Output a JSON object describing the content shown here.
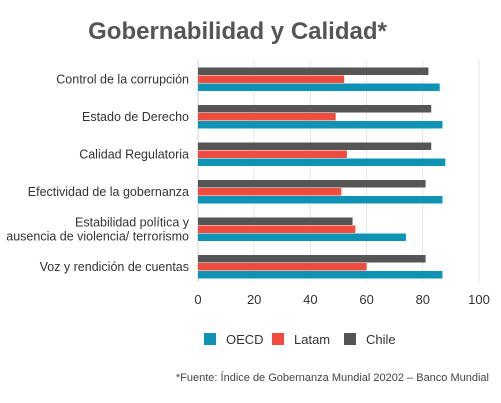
{
  "chart_data": {
    "type": "bar",
    "orientation": "horizontal",
    "title": "Gobernabilidad y Calidad*",
    "categories": [
      [
        "Control de la corrupción"
      ],
      [
        "Estado de Derecho"
      ],
      [
        "Calidad Regulatoria"
      ],
      [
        "Efectividad de la gobernanza"
      ],
      [
        "Estabilidad política y",
        "ausencia de violencia/ terrorismo"
      ],
      [
        "Voz y rendición de cuentas"
      ]
    ],
    "series": [
      {
        "name": "OECD",
        "color": "#0E93B5",
        "values": [
          86,
          87,
          88,
          87,
          74,
          87
        ]
      },
      {
        "name": "Latam",
        "color": "#F04C3E",
        "values": [
          52,
          49,
          53,
          51,
          56,
          60
        ]
      },
      {
        "name": "Chile",
        "color": "#555555",
        "values": [
          82,
          83,
          83,
          81,
          55,
          81
        ]
      }
    ],
    "xlim": [
      0,
      100
    ],
    "xticks": [
      0,
      20,
      40,
      60,
      80,
      100
    ],
    "grid": "vertical",
    "legend": "bottom",
    "source": "*Fuente: Índice de Gobernanza Mundial 20202 – Banco Mundial"
  }
}
